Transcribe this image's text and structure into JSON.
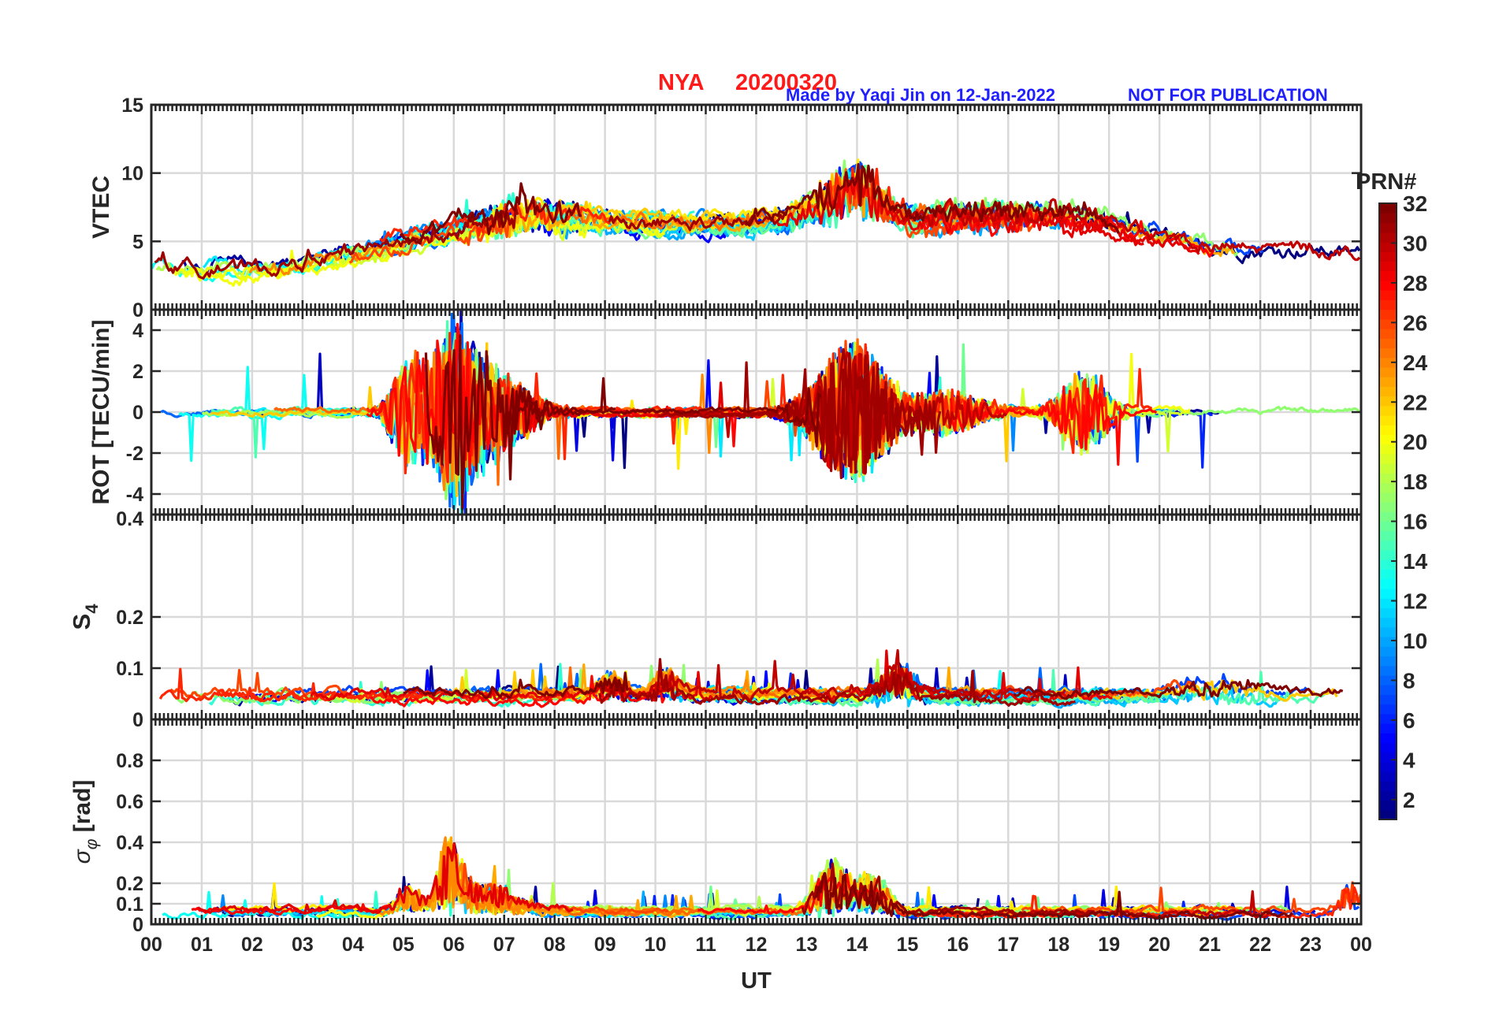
{
  "header": {
    "station": "NYA",
    "date": "20200320",
    "credit": "Made by Yaqi Jin on 12-Jan-2022",
    "notice": "NOT FOR PUBLICATION"
  },
  "chart_data": {
    "type": "line",
    "x_axis": {
      "label": "UT",
      "range": [
        0,
        24
      ],
      "tick_labels": [
        "00",
        "01",
        "02",
        "03",
        "04",
        "05",
        "06",
        "07",
        "08",
        "09",
        "10",
        "11",
        "12",
        "13",
        "14",
        "15",
        "16",
        "17",
        "18",
        "19",
        "20",
        "21",
        "22",
        "23",
        "00"
      ],
      "grid": true
    },
    "colorbar": {
      "label": "PRN#",
      "range": [
        1,
        32
      ],
      "colormap": "jet",
      "ticks": [
        "2",
        "4",
        "6",
        "8",
        "10",
        "12",
        "14",
        "16",
        "18",
        "20",
        "22",
        "24",
        "26",
        "28",
        "30",
        "32"
      ]
    },
    "panels": [
      {
        "id": "vtec",
        "ylabel": "VTEC",
        "ylim": [
          0,
          15
        ],
        "yticks": [
          "0",
          "5",
          "10",
          "15"
        ],
        "baseline": [
          [
            0,
            3.3
          ],
          [
            1,
            3.0
          ],
          [
            2,
            3.0
          ],
          [
            3,
            3.4
          ],
          [
            4,
            4.2
          ],
          [
            5,
            4.9
          ],
          [
            6,
            5.6
          ],
          [
            7,
            5.9
          ],
          [
            8,
            6.2
          ],
          [
            9,
            6.3
          ],
          [
            10,
            6.3
          ],
          [
            11,
            6.3
          ],
          [
            12,
            6.4
          ],
          [
            13,
            6.6
          ],
          [
            14,
            6.8
          ],
          [
            15,
            6.2
          ],
          [
            16,
            6.2
          ],
          [
            17,
            6.2
          ],
          [
            18,
            6.3
          ],
          [
            19,
            6.0
          ],
          [
            20,
            5.2
          ],
          [
            21,
            4.3
          ],
          [
            22,
            4.1
          ],
          [
            23,
            4.2
          ],
          [
            24,
            3.9
          ]
        ],
        "events": [
          [
            13.6,
            2.0,
            0.6
          ],
          [
            14.1,
            2.6,
            0.4
          ],
          [
            16.8,
            1.2,
            1.5
          ],
          [
            7.4,
            1.5,
            1.0
          ]
        ],
        "noise": 0.7,
        "spike": 0.3
      },
      {
        "id": "rot",
        "ylabel": "ROT [TECU/min]",
        "ylim": [
          -5,
          5
        ],
        "yticks": [
          "-4",
          "-2",
          "0",
          "2",
          "4"
        ],
        "baseline": [
          [
            0,
            0
          ],
          [
            24,
            0
          ]
        ],
        "events": [
          [
            5.1,
            2.5,
            0.3
          ],
          [
            6.0,
            4.5,
            0.4
          ],
          [
            6.8,
            2.0,
            0.6
          ],
          [
            13.9,
            3.5,
            0.6
          ],
          [
            18.5,
            2.0,
            0.4
          ],
          [
            15.8,
            1.0,
            0.6
          ]
        ],
        "noise": 0.18,
        "spike": 0.9
      },
      {
        "id": "s4",
        "ylabel": "S4",
        "ylim": [
          0,
          0.4
        ],
        "yticks": [
          "0",
          "0.1",
          "0.2"
        ],
        "top_tick": "0.4",
        "baseline": [
          [
            0,
            0.045
          ],
          [
            24,
            0.045
          ]
        ],
        "events": [
          [
            10.2,
            0.05,
            0.2
          ],
          [
            14.8,
            0.06,
            0.3
          ],
          [
            9.1,
            0.04,
            0.2
          ],
          [
            21.1,
            0.03,
            0.6
          ]
        ],
        "noise": 0.012,
        "spike": 0.02
      },
      {
        "id": "sigma_phi",
        "ylabel": "σφ [rad]",
        "ylim": [
          0,
          1
        ],
        "yticks": [
          "0",
          "0.1",
          "0.2",
          "0.4",
          "0.6",
          "0.8"
        ],
        "baseline": [
          [
            0,
            0.06
          ],
          [
            24,
            0.06
          ]
        ],
        "events": [
          [
            5.9,
            0.3,
            0.2
          ],
          [
            6.5,
            0.15,
            0.6
          ],
          [
            13.5,
            0.25,
            0.3
          ],
          [
            14.3,
            0.18,
            0.3
          ],
          [
            23.8,
            0.15,
            0.2
          ],
          [
            5.1,
            0.12,
            0.2
          ]
        ],
        "noise": 0.02,
        "spike": 0.04
      }
    ],
    "prn_count": 32
  }
}
